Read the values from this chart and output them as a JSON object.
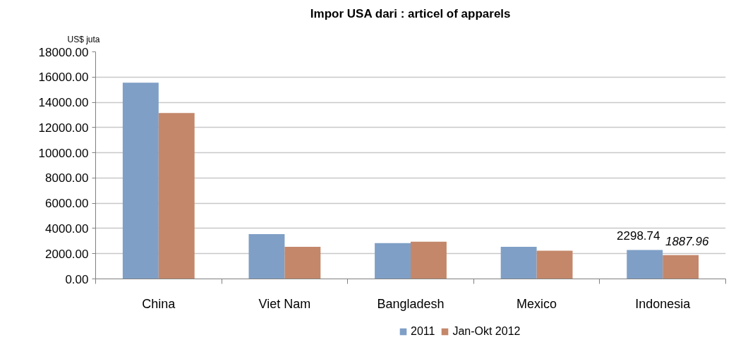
{
  "chart_data": {
    "type": "bar",
    "title": "Impor USA dari : articel of apparels",
    "ylabel": "US$ juta",
    "categories": [
      "China",
      "Viet Nam",
      "Bangladesh",
      "Mexico",
      "Indonesia"
    ],
    "series": [
      {
        "name": "2011",
        "color": "#7f9fc6",
        "values": [
          15550,
          3550,
          2840,
          2550,
          2298.74
        ],
        "value_labels": [
          null,
          null,
          null,
          null,
          "2298.74"
        ]
      },
      {
        "name": "Jan-Okt 2012",
        "color": "#c4876a",
        "values": [
          13150,
          2550,
          2950,
          2230,
          1887.96
        ],
        "value_labels": [
          null,
          null,
          null,
          null,
          "1887.96"
        ]
      }
    ],
    "ylim": [
      0,
      18000
    ],
    "yticks": [
      {
        "value": 0,
        "label": "0.00"
      },
      {
        "value": 2000,
        "label": "2000.00"
      },
      {
        "value": 4000,
        "label": "4000.00"
      },
      {
        "value": 6000,
        "label": "6000.00"
      },
      {
        "value": 8000,
        "label": "8000.00"
      },
      {
        "value": 10000,
        "label": "10000.00"
      },
      {
        "value": 12000,
        "label": "12000.00"
      },
      {
        "value": 14000,
        "label": "14000.00"
      },
      {
        "value": 16000,
        "label": "16000.00"
      },
      {
        "value": 18000,
        "label": "18000.00"
      }
    ],
    "grid": "y",
    "legend": "bottom"
  }
}
